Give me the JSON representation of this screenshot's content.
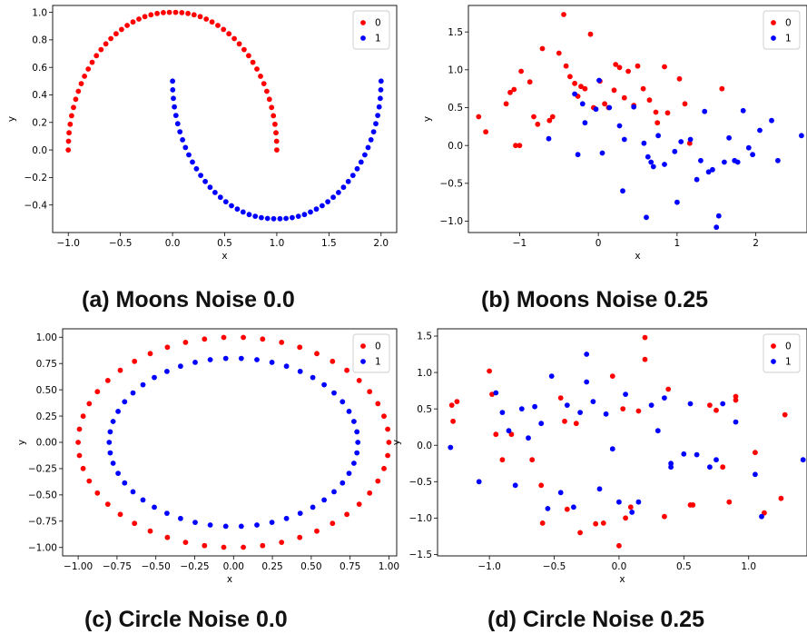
{
  "figure": {
    "captions": [
      "(a) Moons Noise 0.0",
      "(b) Moons Noise 0.25",
      "(c) Circle Noise 0.0",
      "(d) Circle Noise 0.25"
    ]
  },
  "colors": {
    "class0": "#ff0000",
    "class1": "#0000ff"
  },
  "chart_data": [
    {
      "type": "scatter",
      "title": "(a) Moons Noise 0.0",
      "xlabel": "x",
      "ylabel": "y",
      "xlim": [
        -1.15,
        2.15
      ],
      "ylim": [
        -0.6,
        1.05
      ],
      "xticks": [
        -1.0,
        -0.5,
        0.0,
        0.5,
        1.0,
        1.5,
        2.0
      ],
      "xtick_labels": [
        "−1.0",
        "−0.5",
        "0.0",
        "0.5",
        "1.0",
        "1.5",
        "2.0"
      ],
      "yticks": [
        -0.4,
        -0.2,
        0.0,
        0.2,
        0.4,
        0.6,
        0.8,
        1.0
      ],
      "ytick_labels": [
        "−0.4",
        "−0.2",
        "0.0",
        "0.2",
        "0.4",
        "0.6",
        "0.8",
        "1.0"
      ],
      "legend": "top-right",
      "grid": false,
      "series": [
        {
          "name": "0",
          "x": [
            -1.0,
            -0.998,
            -0.992,
            -0.982,
            -0.968,
            -0.95,
            -0.929,
            -0.904,
            -0.876,
            -0.844,
            -0.809,
            -0.771,
            -0.73,
            -0.686,
            -0.64,
            -0.592,
            -0.541,
            -0.489,
            -0.435,
            -0.379,
            -0.323,
            -0.265,
            -0.207,
            -0.148,
            -0.089,
            -0.03,
            0.03,
            0.089,
            0.148,
            0.207,
            0.265,
            0.323,
            0.379,
            0.435,
            0.489,
            0.541,
            0.592,
            0.64,
            0.686,
            0.73,
            0.771,
            0.809,
            0.844,
            0.876,
            0.904,
            0.929,
            0.95,
            0.968,
            0.982,
            0.992,
            0.998,
            1.0
          ],
          "y": [
            0.0,
            0.063,
            0.125,
            0.187,
            0.249,
            0.309,
            0.368,
            0.426,
            0.482,
            0.536,
            0.588,
            0.637,
            0.685,
            0.729,
            0.771,
            0.809,
            0.844,
            0.876,
            0.905,
            0.93,
            0.951,
            0.969,
            0.982,
            0.992,
            0.998,
            1.0,
            1.0,
            0.998,
            0.992,
            0.982,
            0.969,
            0.951,
            0.93,
            0.905,
            0.876,
            0.844,
            0.809,
            0.771,
            0.729,
            0.685,
            0.637,
            0.588,
            0.536,
            0.482,
            0.426,
            0.368,
            0.309,
            0.249,
            0.187,
            0.125,
            0.063,
            0.0
          ]
        },
        {
          "name": "1",
          "x": [
            0.0,
            0.002,
            0.008,
            0.018,
            0.032,
            0.05,
            0.071,
            0.096,
            0.124,
            0.156,
            0.191,
            0.229,
            0.27,
            0.314,
            0.36,
            0.408,
            0.459,
            0.511,
            0.565,
            0.621,
            0.677,
            0.735,
            0.793,
            0.852,
            0.911,
            0.97,
            1.03,
            1.089,
            1.148,
            1.207,
            1.265,
            1.323,
            1.379,
            1.435,
            1.489,
            1.541,
            1.592,
            1.64,
            1.686,
            1.73,
            1.771,
            1.809,
            1.844,
            1.876,
            1.904,
            1.929,
            1.95,
            1.968,
            1.982,
            1.992,
            1.998,
            2.0
          ],
          "y": [
            0.5,
            0.437,
            0.375,
            0.313,
            0.251,
            0.191,
            0.132,
            0.074,
            0.018,
            -0.036,
            -0.088,
            -0.137,
            -0.185,
            -0.229,
            -0.271,
            -0.309,
            -0.344,
            -0.376,
            -0.405,
            -0.43,
            -0.451,
            -0.469,
            -0.482,
            -0.492,
            -0.498,
            -0.5,
            -0.5,
            -0.498,
            -0.492,
            -0.482,
            -0.469,
            -0.451,
            -0.43,
            -0.405,
            -0.376,
            -0.344,
            -0.309,
            -0.271,
            -0.229,
            -0.185,
            -0.137,
            -0.088,
            -0.036,
            0.018,
            0.074,
            0.132,
            0.191,
            0.251,
            0.313,
            0.375,
            0.437,
            0.5
          ]
        }
      ]
    },
    {
      "type": "scatter",
      "title": "(b) Moons Noise 0.25",
      "xlabel": "x",
      "ylabel": "y",
      "xlim": [
        -1.65,
        2.65
      ],
      "ylim": [
        -1.15,
        1.85
      ],
      "xticks": [
        -1,
        0,
        1,
        2
      ],
      "xtick_labels": [
        "−1",
        "0",
        "1",
        "2"
      ],
      "yticks": [
        -1.0,
        -0.5,
        0.0,
        0.5,
        1.0,
        1.5
      ],
      "ytick_labels": [
        "−1.0",
        "−0.5",
        "0.0",
        "0.5",
        "1.0",
        "1.5"
      ],
      "legend": "top-right",
      "grid": false,
      "series": [
        {
          "name": "0",
          "x": [
            -1.52,
            -1.43,
            -1.17,
            -1.12,
            -1.07,
            -1.05,
            -1.0,
            -0.98,
            -0.87,
            -0.82,
            -0.77,
            -0.71,
            -0.62,
            -0.58,
            -0.5,
            -0.44,
            -0.41,
            -0.36,
            -0.3,
            -0.26,
            -0.22,
            -0.17,
            -0.1,
            -0.06,
            0.02,
            0.08,
            0.13,
            0.2,
            0.22,
            0.27,
            0.33,
            0.38,
            0.45,
            0.5,
            0.57,
            0.65,
            0.73,
            0.75,
            0.84,
            0.88,
            1.03,
            1.1,
            1.16,
            1.57
          ],
          "y": [
            0.38,
            0.18,
            0.55,
            0.7,
            0.74,
            0.0,
            0.0,
            0.98,
            0.84,
            0.38,
            0.28,
            1.28,
            0.33,
            0.38,
            1.22,
            1.73,
            1.05,
            0.91,
            0.82,
            0.65,
            0.78,
            0.75,
            1.47,
            0.5,
            0.85,
            0.55,
            0.5,
            0.73,
            1.07,
            1.03,
            0.63,
            0.98,
            0.53,
            1.05,
            0.75,
            0.6,
            0.44,
            0.3,
            1.04,
            0.43,
            0.88,
            0.55,
            0.03,
            0.75
          ]
        },
        {
          "name": "1",
          "x": [
            -0.63,
            -0.3,
            -0.26,
            -0.2,
            -0.17,
            -0.03,
            0.01,
            0.05,
            0.14,
            0.27,
            0.31,
            0.33,
            0.45,
            0.58,
            0.61,
            0.63,
            0.67,
            0.7,
            0.76,
            0.84,
            0.97,
            1.0,
            1.05,
            1.17,
            1.25,
            1.3,
            1.35,
            1.4,
            1.45,
            1.5,
            1.53,
            1.6,
            1.66,
            1.73,
            1.77,
            1.84,
            1.91,
            1.96,
            2.05,
            2.2,
            2.28,
            2.58
          ],
          "y": [
            0.09,
            0.68,
            -0.12,
            0.55,
            0.3,
            0.48,
            0.86,
            -0.1,
            0.5,
            0.26,
            -0.6,
            0.08,
            0.51,
            0.03,
            -0.95,
            -0.15,
            -0.22,
            -0.28,
            0.13,
            -0.25,
            -0.08,
            -0.75,
            0.05,
            0.08,
            -0.45,
            -0.2,
            0.45,
            -0.35,
            -0.32,
            -1.08,
            -0.93,
            -0.22,
            0.1,
            -0.2,
            -0.22,
            0.46,
            -0.03,
            -0.12,
            0.2,
            0.33,
            -0.2,
            0.13
          ]
        }
      ]
    },
    {
      "type": "scatter",
      "title": "(c) Circle Noise 0.0",
      "xlabel": "x",
      "ylabel": "y",
      "xlim": [
        -1.1,
        1.05
      ],
      "ylim": [
        -1.08,
        1.08
      ],
      "xticks": [
        -1.0,
        -0.75,
        -0.5,
        -0.25,
        0.0,
        0.25,
        0.5,
        0.75,
        1.0
      ],
      "xtick_labels": [
        "−1.00",
        "−0.75",
        "−0.50",
        "−0.25",
        "0.00",
        "0.25",
        "0.50",
        "0.75",
        "1.00"
      ],
      "yticks": [
        -1.0,
        -0.75,
        -0.5,
        -0.25,
        0.0,
        0.25,
        0.5,
        0.75,
        1.0
      ],
      "ytick_labels": [
        "−1.00",
        "−0.75",
        "−0.50",
        "−0.25",
        "0.00",
        "0.25",
        "0.50",
        "0.75",
        "1.00"
      ],
      "legend": "top-right",
      "grid": false,
      "series": [
        {
          "name": "0",
          "x": [
            1.0,
            0.992,
            0.968,
            0.929,
            0.876,
            0.809,
            0.729,
            0.637,
            0.536,
            0.426,
            0.309,
            0.187,
            0.063,
            -0.063,
            -0.187,
            -0.309,
            -0.426,
            -0.536,
            -0.637,
            -0.729,
            -0.809,
            -0.876,
            -0.929,
            -0.968,
            -0.992,
            -1.0,
            -0.992,
            -0.968,
            -0.929,
            -0.876,
            -0.809,
            -0.729,
            -0.637,
            -0.536,
            -0.426,
            -0.309,
            -0.187,
            -0.063,
            0.063,
            0.187,
            0.309,
            0.426,
            0.536,
            0.637,
            0.729,
            0.809,
            0.876,
            0.929,
            0.968,
            0.992
          ],
          "y": [
            0.0,
            0.125,
            0.249,
            0.368,
            0.482,
            0.588,
            0.685,
            0.771,
            0.844,
            0.905,
            0.951,
            0.982,
            0.998,
            0.998,
            0.982,
            0.951,
            0.905,
            0.844,
            0.771,
            0.685,
            0.588,
            0.482,
            0.368,
            0.249,
            0.125,
            0.0,
            -0.125,
            -0.249,
            -0.368,
            -0.482,
            -0.588,
            -0.685,
            -0.771,
            -0.844,
            -0.905,
            -0.951,
            -0.982,
            -0.998,
            -0.998,
            -0.982,
            -0.951,
            -0.905,
            -0.844,
            -0.771,
            -0.685,
            -0.588,
            -0.482,
            -0.368,
            -0.249,
            -0.125
          ]
        },
        {
          "name": "1",
          "x": [
            0.8,
            0.794,
            0.775,
            0.743,
            0.701,
            0.647,
            0.583,
            0.51,
            0.429,
            0.341,
            0.247,
            0.15,
            0.05,
            -0.05,
            -0.15,
            -0.247,
            -0.341,
            -0.429,
            -0.51,
            -0.583,
            -0.647,
            -0.701,
            -0.743,
            -0.775,
            -0.794,
            -0.8,
            -0.794,
            -0.775,
            -0.743,
            -0.701,
            -0.647,
            -0.583,
            -0.51,
            -0.429,
            -0.341,
            -0.247,
            -0.15,
            -0.05,
            0.05,
            0.15,
            0.247,
            0.341,
            0.429,
            0.51,
            0.583,
            0.647,
            0.701,
            0.743,
            0.775,
            0.794
          ],
          "y": [
            0.0,
            0.1,
            0.199,
            0.295,
            0.386,
            0.47,
            0.548,
            0.617,
            0.675,
            0.724,
            0.761,
            0.786,
            0.798,
            0.798,
            0.786,
            0.761,
            0.724,
            0.675,
            0.617,
            0.548,
            0.47,
            0.386,
            0.295,
            0.199,
            0.1,
            0.0,
            -0.1,
            -0.199,
            -0.295,
            -0.386,
            -0.47,
            -0.548,
            -0.617,
            -0.675,
            -0.724,
            -0.761,
            -0.786,
            -0.798,
            -0.798,
            -0.786,
            -0.761,
            -0.724,
            -0.675,
            -0.617,
            -0.548,
            -0.47,
            -0.386,
            -0.295,
            -0.199,
            -0.1
          ]
        }
      ]
    },
    {
      "type": "scatter",
      "title": "(d) Circle Noise 0.25",
      "xlabel": "x",
      "ylabel": "y",
      "xlim": [
        -1.4,
        1.45
      ],
      "ylim": [
        -1.52,
        1.6
      ],
      "xticks": [
        -1.0,
        -0.5,
        0.0,
        0.5,
        1.0
      ],
      "xtick_labels": [
        "−1.0",
        "−0.5",
        "0.0",
        "0.5",
        "1.0"
      ],
      "yticks": [
        -1.5,
        -1.0,
        -0.5,
        0.0,
        0.5,
        1.0,
        1.5
      ],
      "ytick_labels": [
        "−1.5",
        "−1.0",
        "−0.5",
        "0.0",
        "0.5",
        "1.0",
        "1.5"
      ],
      "legend": "top-right",
      "grid": false,
      "series": [
        {
          "name": "0",
          "x": [
            -1.29,
            -1.28,
            -1.25,
            -1.0,
            -0.98,
            -0.95,
            -0.9,
            -0.83,
            -0.67,
            -0.6,
            -0.59,
            -0.45,
            -0.42,
            -0.4,
            -0.33,
            -0.3,
            -0.18,
            -0.12,
            -0.05,
            0.0,
            0.03,
            0.05,
            0.09,
            0.15,
            0.2,
            0.2,
            0.35,
            0.38,
            0.55,
            0.57,
            0.7,
            0.75,
            0.8,
            0.85,
            0.9,
            0.9,
            1.05,
            1.12,
            1.25,
            1.28
          ],
          "y": [
            0.55,
            0.33,
            0.6,
            1.02,
            0.7,
            0.15,
            -0.2,
            0.15,
            -0.2,
            -0.55,
            -1.07,
            0.65,
            0.33,
            -0.88,
            0.3,
            -1.2,
            -1.08,
            -1.07,
            0.95,
            -1.38,
            0.5,
            -1.0,
            -0.85,
            0.47,
            1.48,
            1.18,
            -0.98,
            0.77,
            -0.82,
            -0.82,
            0.55,
            0.48,
            -0.3,
            -0.78,
            0.62,
            0.67,
            -0.1,
            -0.93,
            -0.73,
            0.42
          ]
        },
        {
          "name": "1",
          "x": [
            -1.3,
            -1.08,
            -0.95,
            -0.9,
            -0.85,
            -0.8,
            -0.75,
            -0.7,
            -0.65,
            -0.6,
            -0.55,
            -0.52,
            -0.45,
            -0.4,
            -0.35,
            -0.3,
            -0.25,
            -0.25,
            -0.2,
            -0.15,
            -0.1,
            -0.05,
            0.0,
            0.05,
            0.1,
            0.15,
            0.25,
            0.3,
            0.35,
            0.4,
            0.4,
            0.5,
            0.55,
            0.6,
            0.7,
            0.75,
            0.8,
            0.9,
            1.05,
            1.1,
            1.42
          ],
          "y": [
            -0.03,
            -0.5,
            0.72,
            0.45,
            0.2,
            -0.55,
            0.5,
            0.1,
            0.53,
            0.3,
            -0.87,
            0.95,
            -0.65,
            0.55,
            -0.85,
            0.45,
            0.87,
            1.25,
            0.6,
            -0.6,
            0.43,
            -0.05,
            -0.78,
            0.7,
            -0.92,
            -0.78,
            0.55,
            0.2,
            0.65,
            -0.3,
            -0.25,
            -0.12,
            0.57,
            -0.13,
            -0.3,
            -0.2,
            0.57,
            0.32,
            -0.4,
            -0.98,
            -0.2
          ]
        }
      ]
    }
  ]
}
